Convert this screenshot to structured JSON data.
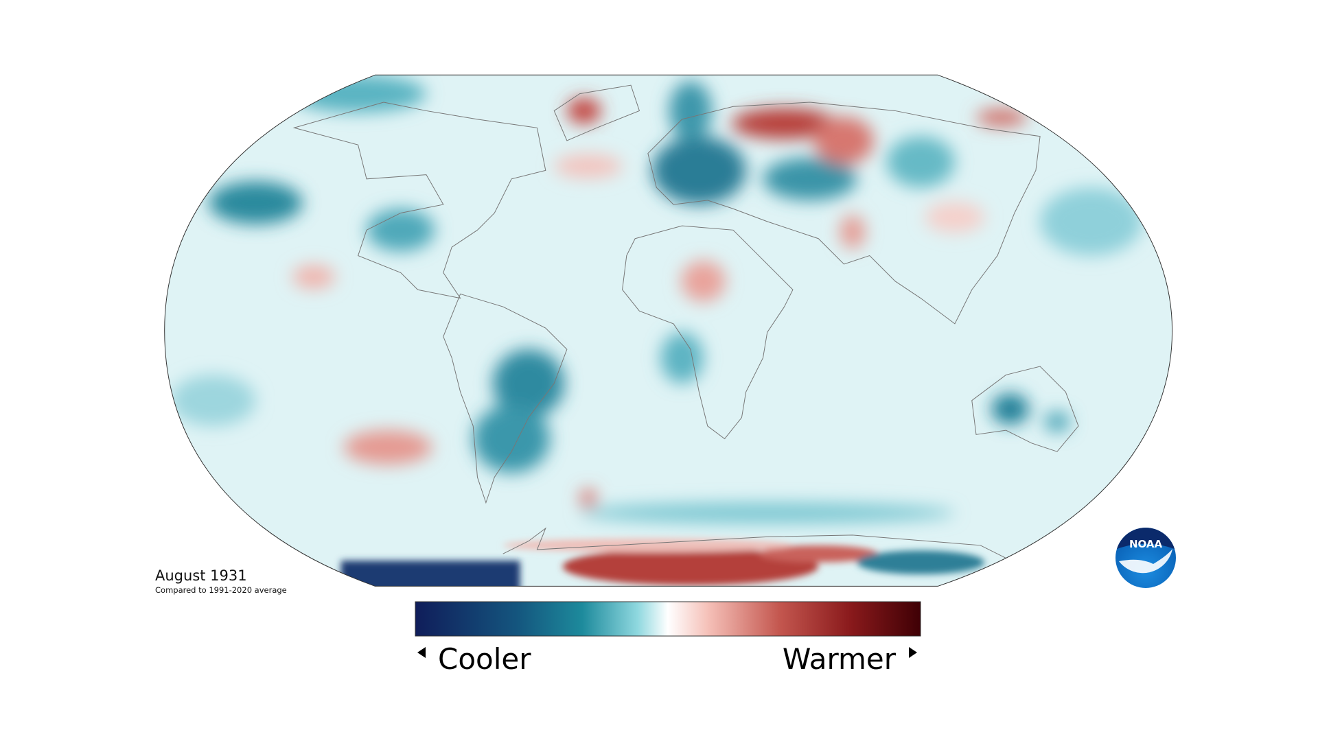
{
  "title": "August 1931",
  "subtitle": "Compared to 1991-2020 average",
  "legend": {
    "low": "Cooler",
    "high": "Warmer"
  },
  "logo": "NOAA"
}
